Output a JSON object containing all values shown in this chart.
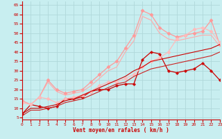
{
  "xlabel": "Vent moyen/en rafales ( km/h )",
  "bg_color": "#c8eef0",
  "grid_color": "#b0d8da",
  "x_ticks": [
    0,
    1,
    2,
    3,
    4,
    5,
    6,
    7,
    8,
    9,
    10,
    11,
    12,
    13,
    14,
    15,
    16,
    17,
    18,
    19,
    20,
    21,
    22,
    23
  ],
  "y_ticks": [
    5,
    10,
    15,
    20,
    25,
    30,
    35,
    40,
    45,
    50,
    55,
    60,
    65
  ],
  "ylim": [
    4,
    67
  ],
  "xlim": [
    0,
    23
  ],
  "lines": [
    {
      "x": [
        0,
        1,
        2,
        3,
        4,
        5,
        6,
        7,
        8,
        9,
        10,
        11,
        12,
        13,
        14,
        15,
        16,
        17,
        18,
        19,
        20,
        21,
        22,
        23
      ],
      "y": [
        7,
        12,
        11,
        10,
        11,
        15,
        15,
        16,
        19,
        20,
        20,
        22,
        23,
        23,
        36,
        40,
        39,
        30,
        29,
        30,
        31,
        34,
        30,
        25
      ],
      "color": "#cc0000",
      "marker": "P",
      "ms": 2.5,
      "lw": 0.9
    },
    {
      "x": [
        0,
        1,
        2,
        3,
        4,
        5,
        6,
        7,
        8,
        9,
        10,
        11,
        12,
        13,
        14,
        15,
        16,
        17,
        18,
        19,
        20,
        21,
        22,
        23
      ],
      "y": [
        14,
        12,
        16,
        25,
        20,
        18,
        19,
        20,
        24,
        28,
        32,
        35,
        42,
        49,
        62,
        60,
        53,
        50,
        48,
        49,
        50,
        51,
        57,
        44
      ],
      "color": "#ff9999",
      "marker": "D",
      "ms": 2.5,
      "lw": 0.9
    },
    {
      "x": [
        0,
        1,
        2,
        3,
        4,
        5,
        6,
        7,
        8,
        9,
        10,
        11,
        12,
        13,
        14,
        15,
        16,
        17,
        18,
        19,
        20,
        21,
        22,
        23
      ],
      "y": [
        14,
        12,
        16,
        24,
        19,
        17,
        18,
        19,
        22,
        26,
        30,
        32,
        40,
        46,
        59,
        57,
        50,
        47,
        46,
        47,
        48,
        49,
        49,
        43
      ],
      "color": "#ffaaaa",
      "marker": null,
      "lw": 0.8
    },
    {
      "x": [
        0,
        1,
        2,
        3,
        4,
        5,
        6,
        7,
        8,
        9,
        10,
        11,
        12,
        13,
        14,
        15,
        16,
        17,
        18,
        19,
        20,
        21,
        22,
        23
      ],
      "y": [
        13,
        12,
        16,
        15,
        13,
        15,
        16,
        17,
        19,
        22,
        24,
        24,
        26,
        28,
        32,
        35,
        37,
        40,
        47,
        49,
        52,
        53,
        51,
        45
      ],
      "color": "#ffbbbb",
      "marker": "D",
      "ms": 2.5,
      "lw": 0.9
    },
    {
      "x": [
        0,
        1,
        2,
        3,
        4,
        5,
        6,
        7,
        8,
        9,
        10,
        11,
        12,
        13,
        14,
        15,
        16,
        17,
        18,
        19,
        20,
        21,
        22,
        23
      ],
      "y": [
        7,
        10,
        10,
        11,
        12,
        14,
        15,
        17,
        19,
        21,
        23,
        25,
        27,
        30,
        32,
        35,
        36,
        37,
        38,
        39,
        40,
        41,
        42,
        44
      ],
      "color": "#cc0000",
      "marker": null,
      "lw": 0.8,
      "linestyle": "-"
    },
    {
      "x": [
        0,
        1,
        2,
        3,
        4,
        5,
        6,
        7,
        8,
        9,
        10,
        11,
        12,
        13,
        14,
        15,
        16,
        17,
        18,
        19,
        20,
        21,
        22,
        23
      ],
      "y": [
        6,
        9,
        9,
        10,
        11,
        13,
        14,
        15,
        17,
        19,
        21,
        23,
        24,
        27,
        29,
        31,
        32,
        33,
        34,
        35,
        36,
        37,
        38,
        40
      ],
      "color": "#cc2222",
      "marker": null,
      "lw": 0.8,
      "linestyle": "-"
    }
  ]
}
